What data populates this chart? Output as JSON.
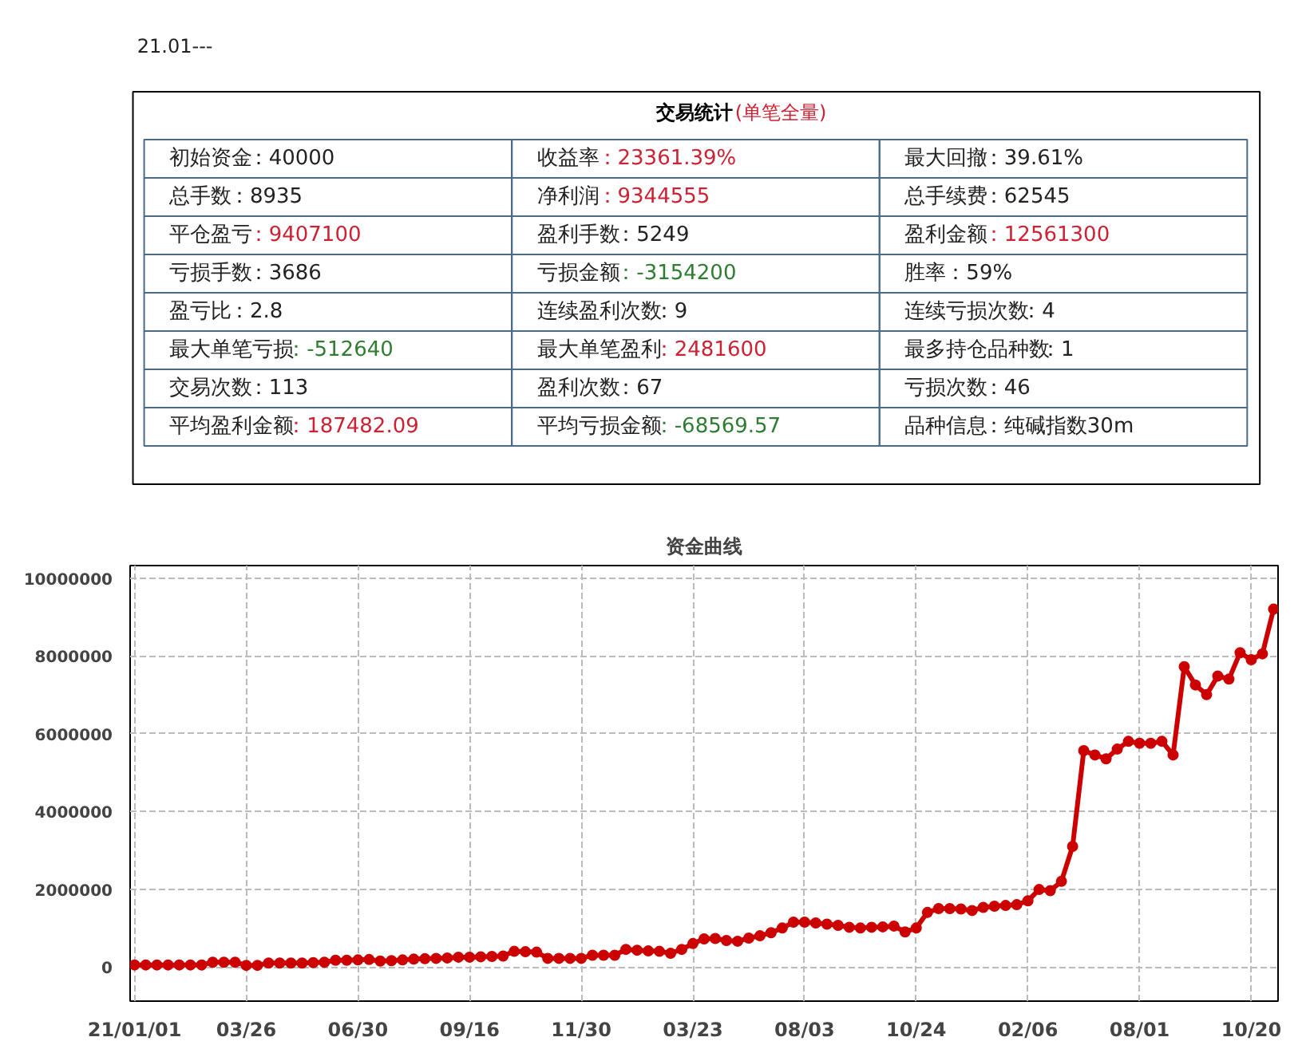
{
  "chart_data": [
    {
      "type": "other",
      "title": "交易统计",
      "subtitle": "(单笔全量)",
      "annotations": [
        "21.01---"
      ],
      "categories": [
        "初始资金",
        "收益率",
        "最大回撤",
        "总手数",
        "净利润",
        "总手续费",
        "平仓盈亏",
        "盈利手数",
        "盈利金额",
        "亏损手数",
        "亏损金额",
        "胜率",
        "盈亏比",
        "连续盈利次数",
        "连续亏损次数",
        "最大单笔亏损",
        "最大单笔盈利",
        "最多持仓品种数",
        "交易次数",
        "盈利次数",
        "亏损次数",
        "平均盈利金额",
        "平均亏损金额",
        "品种信息"
      ],
      "value_labels": [
        "：40000",
        "：23361.39%",
        "：39.61%",
        "：8935",
        "：9344555",
        "：62545",
        "：9407100",
        "：5249",
        "：12561300",
        "：3686",
        "：-3154200",
        "：59%",
        "：2.8",
        "：9",
        "：4",
        "：-512640",
        "：2481600",
        "：1",
        "：113",
        "：67",
        "：46",
        "：187482.09",
        "：-68569.57",
        "：纯碱指数30m"
      ],
      "colors": [
        "#222222",
        "#cc2233",
        "#222222",
        "#222222",
        "#cc2233",
        "#222222",
        "#cc2233",
        "#222222",
        "#cc2233",
        "#222222",
        "#2e7d32",
        "#222222",
        "#222222",
        "#222222",
        "#222222",
        "#2e7d32",
        "#cc2233",
        "#222222",
        "#222222",
        "#222222",
        "#222222",
        "#cc2233",
        "#2e7d32",
        "#222222"
      ]
    },
    {
      "type": "line",
      "title": "资金曲线",
      "color": "#cc0000",
      "marker": "circle",
      "grid": true,
      "categories": [
        "21/01/01",
        null,
        null,
        null,
        null,
        null,
        null,
        null,
        null,
        null,
        "03/26",
        null,
        null,
        null,
        null,
        null,
        null,
        null,
        null,
        null,
        "06/30",
        null,
        null,
        null,
        null,
        null,
        null,
        null,
        null,
        null,
        "09/16",
        null,
        null,
        null,
        null,
        null,
        null,
        null,
        null,
        null,
        "11/30",
        null,
        null,
        null,
        null,
        null,
        null,
        null,
        null,
        null,
        "03/23",
        null,
        null,
        null,
        null,
        null,
        null,
        null,
        null,
        null,
        "08/03",
        null,
        null,
        null,
        null,
        null,
        null,
        null,
        null,
        null,
        "10/24",
        null,
        null,
        null,
        null,
        null,
        null,
        null,
        null,
        null,
        "02/06",
        null,
        null,
        null,
        null,
        null,
        null,
        null,
        null,
        null,
        "08/01",
        null,
        null,
        null,
        null,
        null,
        null,
        null,
        null,
        null,
        "10/20",
        null,
        null
      ],
      "values": [
        50000,
        50000,
        50000,
        50000,
        50000,
        50000,
        50000,
        120000,
        120000,
        120000,
        40000,
        40000,
        100000,
        100000,
        100000,
        100000,
        110000,
        120000,
        170000,
        170000,
        180000,
        190000,
        150000,
        160000,
        180000,
        200000,
        210000,
        220000,
        230000,
        250000,
        250000,
        260000,
        270000,
        280000,
        400000,
        390000,
        380000,
        220000,
        220000,
        220000,
        220000,
        300000,
        300000,
        300000,
        450000,
        430000,
        410000,
        400000,
        350000,
        450000,
        600000,
        720000,
        730000,
        680000,
        660000,
        740000,
        800000,
        880000,
        1000000,
        1150000,
        1150000,
        1130000,
        1100000,
        1070000,
        1020000,
        1000000,
        1020000,
        1030000,
        1050000,
        900000,
        1000000,
        1400000,
        1500000,
        1500000,
        1490000,
        1450000,
        1530000,
        1560000,
        1580000,
        1600000,
        1700000,
        1990000,
        1960000,
        2200000,
        3100000,
        5560000,
        5450000,
        5350000,
        5600000,
        5800000,
        5750000,
        5750000,
        5800000,
        5450000,
        7720000,
        7250000,
        7000000,
        7480000,
        7400000,
        8080000,
        7900000,
        8050000,
        9200000
      ],
      "ylim": [
        -880000,
        10320000
      ],
      "yticks": [
        0,
        2000000,
        4000000,
        6000000,
        8000000,
        10000000
      ]
    }
  ]
}
